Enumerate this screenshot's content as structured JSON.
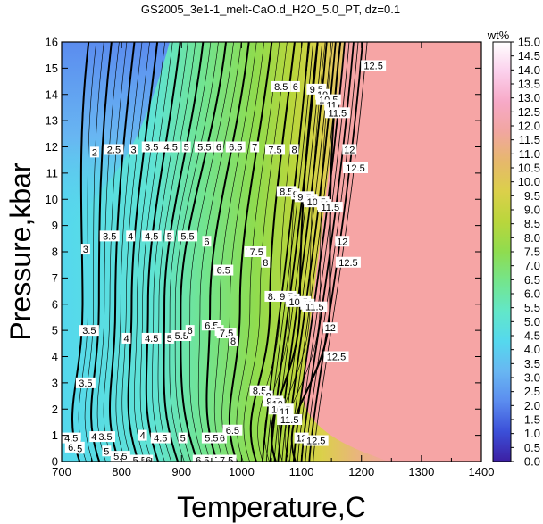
{
  "chart_data": {
    "type": "heatmap",
    "title": "GS2005_3e1-1_melt-CaO.d_H2O_5.0_PT, dz=0.1",
    "xlabel": "Temperature,C",
    "ylabel": "Pressure,kbar",
    "xlim": [
      700,
      1400
    ],
    "ylim": [
      0,
      16
    ],
    "x_ticks": [
      "700",
      "800",
      "900",
      "1000",
      "1100",
      "1200",
      "1300",
      "1400"
    ],
    "y_ticks": [
      "0",
      "1",
      "2",
      "3",
      "4",
      "5",
      "6",
      "7",
      "8",
      "9",
      "10",
      "11",
      "12",
      "13",
      "14",
      "15",
      "16"
    ],
    "colorbar": {
      "label": "wt%",
      "range": [
        0.0,
        15.0
      ],
      "ticks": [
        "0.0",
        "0.5",
        "1.0",
        "1.5",
        "2.0",
        "2.5",
        "3.0",
        "3.5",
        "4.0",
        "4.5",
        "5.0",
        "5.5",
        "6.0",
        "6.5",
        "7.0",
        "7.5",
        "8.0",
        "8.5",
        "9.0",
        "9.5",
        "10.0",
        "10.5",
        "11.0",
        "11.5",
        "12.0",
        "12.5",
        "13.0",
        "13.5",
        "14.0",
        "14.5",
        "15.0"
      ],
      "colors": [
        "#3c1fa3",
        "#3b4fd8",
        "#5b8cef",
        "#68b6f2",
        "#55d8ee",
        "#62e7c9",
        "#74e58d",
        "#8fdc4f",
        "#b9d63c",
        "#dbd04a",
        "#e6b86b",
        "#f1a6a0",
        "#f7a9c7",
        "#fbd0ec",
        "#ffffff"
      ]
    },
    "field_color_above_liquidus": "#f6a5a5",
    "contour_labels": [
      {
        "v": "2",
        "x": 755,
        "y": 11.8
      },
      {
        "v": "2.5",
        "x": 787,
        "y": 11.9
      },
      {
        "v": "3",
        "x": 820,
        "y": 11.9
      },
      {
        "v": "3.5",
        "x": 850,
        "y": 12.0
      },
      {
        "v": "4.5",
        "x": 882,
        "y": 12.0
      },
      {
        "v": "5",
        "x": 908,
        "y": 12.0
      },
      {
        "v": "5.5",
        "x": 938,
        "y": 12.0
      },
      {
        "v": "6",
        "x": 962,
        "y": 12.0
      },
      {
        "v": "6.5",
        "x": 990,
        "y": 12.0
      },
      {
        "v": "7",
        "x": 1022,
        "y": 12.0
      },
      {
        "v": "7.5",
        "x": 1056,
        "y": 11.9
      },
      {
        "v": "8",
        "x": 1088,
        "y": 11.9
      },
      {
        "v": "3",
        "x": 740,
        "y": 8.1
      },
      {
        "v": "3.5",
        "x": 780,
        "y": 8.6
      },
      {
        "v": "4",
        "x": 815,
        "y": 8.6
      },
      {
        "v": "4.5",
        "x": 850,
        "y": 8.6
      },
      {
        "v": "5",
        "x": 880,
        "y": 8.6
      },
      {
        "v": "5.5",
        "x": 910,
        "y": 8.6
      },
      {
        "v": "6",
        "x": 942,
        "y": 8.4
      },
      {
        "v": "6.5",
        "x": 970,
        "y": 7.3
      },
      {
        "v": "7",
        "x": 1012,
        "y": 8.0
      },
      {
        "v": "7.5",
        "x": 1025,
        "y": 8.0
      },
      {
        "v": "8",
        "x": 1040,
        "y": 7.6
      },
      {
        "v": "3.5",
        "x": 746,
        "y": 5.0
      },
      {
        "v": "4",
        "x": 808,
        "y": 4.7
      },
      {
        "v": "4.5",
        "x": 850,
        "y": 4.7
      },
      {
        "v": "5",
        "x": 880,
        "y": 4.7
      },
      {
        "v": "5.5",
        "x": 900,
        "y": 4.8
      },
      {
        "v": "6",
        "x": 914,
        "y": 5.0
      },
      {
        "v": "6.5",
        "x": 950,
        "y": 5.2
      },
      {
        "v": "7",
        "x": 963,
        "y": 5.0
      },
      {
        "v": "7.5",
        "x": 975,
        "y": 4.9
      },
      {
        "v": "8",
        "x": 986,
        "y": 4.6
      },
      {
        "v": "3.5",
        "x": 740,
        "y": 3.0
      },
      {
        "v": "4",
        "x": 835,
        "y": 1.0
      },
      {
        "v": "4.5",
        "x": 865,
        "y": 0.9
      },
      {
        "v": "5",
        "x": 902,
        "y": 0.9
      },
      {
        "v": "5.5",
        "x": 950,
        "y": 0.9
      },
      {
        "v": "6",
        "x": 968,
        "y": 0.9
      },
      {
        "v": "6.5",
        "x": 985,
        "y": 1.2
      },
      {
        "v": "12",
        "x": 1100,
        "y": 0.9
      },
      {
        "v": "12.5",
        "x": 1124,
        "y": 0.8
      },
      {
        "v": "8.5",
        "x": 1066,
        "y": 14.3
      },
      {
        "v": "6",
        "x": 1090,
        "y": 14.3
      },
      {
        "v": "9.5",
        "x": 1125,
        "y": 14.2
      },
      {
        "v": "10",
        "x": 1135,
        "y": 14.0
      },
      {
        "v": "10.5",
        "x": 1145,
        "y": 13.8
      },
      {
        "v": "11",
        "x": 1150,
        "y": 13.6
      },
      {
        "v": "11.5",
        "x": 1160,
        "y": 13.3
      },
      {
        "v": "12",
        "x": 1180,
        "y": 11.9
      },
      {
        "v": "12.5",
        "x": 1190,
        "y": 11.2
      },
      {
        "v": "12.5",
        "x": 1220,
        "y": 15.1
      },
      {
        "v": "8.5",
        "x": 1075,
        "y": 10.3
      },
      {
        "v": "9",
        "x": 1090,
        "y": 10.2
      },
      {
        "v": "9.5",
        "x": 1105,
        "y": 10.1
      },
      {
        "v": "10",
        "x": 1115,
        "y": 10.0
      },
      {
        "v": "10.5",
        "x": 1125,
        "y": 9.9
      },
      {
        "v": "11",
        "x": 1138,
        "y": 9.8
      },
      {
        "v": "11.5",
        "x": 1148,
        "y": 9.7
      },
      {
        "v": "12",
        "x": 1168,
        "y": 8.4
      },
      {
        "v": "12.5",
        "x": 1178,
        "y": 7.6
      },
      {
        "v": "8.5",
        "x": 1055,
        "y": 6.3
      },
      {
        "v": "9",
        "x": 1065,
        "y": 6.3
      },
      {
        "v": "9.5",
        "x": 1075,
        "y": 6.3
      },
      {
        "v": "10",
        "x": 1085,
        "y": 6.2
      },
      {
        "v": "10.5",
        "x": 1095,
        "y": 6.1
      },
      {
        "v": "11",
        "x": 1110,
        "y": 6.0
      },
      {
        "v": "11.5",
        "x": 1122,
        "y": 5.9
      },
      {
        "v": "12",
        "x": 1148,
        "y": 5.1
      },
      {
        "v": "12.5",
        "x": 1158,
        "y": 4.0
      },
      {
        "v": "8.5",
        "x": 1030,
        "y": 2.7
      },
      {
        "v": "9",
        "x": 1045,
        "y": 2.5
      },
      {
        "v": "9.5",
        "x": 1053,
        "y": 2.3
      },
      {
        "v": "10",
        "x": 1060,
        "y": 2.2
      },
      {
        "v": "10.5",
        "x": 1066,
        "y": 2.0
      },
      {
        "v": "11",
        "x": 1072,
        "y": 1.9
      },
      {
        "v": "11.5",
        "x": 1080,
        "y": 1.6
      },
      {
        "v": "4.5",
        "x": 716,
        "y": 0.9
      },
      {
        "v": "4",
        "x": 754,
        "y": 0.95
      },
      {
        "v": "3.5",
        "x": 773,
        "y": 0.95
      },
      {
        "v": "6.5",
        "x": 722,
        "y": 0.55
      },
      {
        "v": "5",
        "x": 730,
        "y": 0.5
      },
      {
        "v": "5",
        "x": 775,
        "y": 0.4
      },
      {
        "v": "5.5",
        "x": 798,
        "y": 0.2
      },
      {
        "v": "5.5",
        "x": 830,
        "y": 0.05
      },
      {
        "v": "6",
        "x": 845,
        "y": 0.05
      },
      {
        "v": "6.5",
        "x": 935,
        "y": 0.05
      },
      {
        "v": "7",
        "x": 960,
        "y": 0.05
      },
      {
        "v": "7.5",
        "x": 975,
        "y": 0.05
      }
    ]
  }
}
